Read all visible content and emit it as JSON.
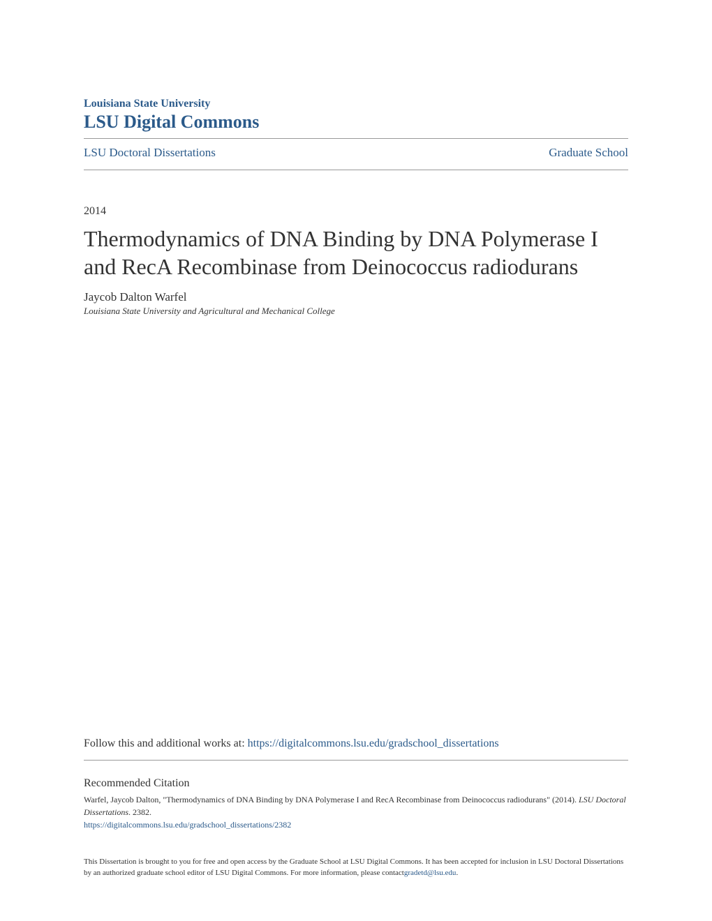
{
  "colors": {
    "link": "#2b5a8a",
    "text": "#333333",
    "border": "#999999",
    "background": "#ffffff"
  },
  "typography": {
    "font_family": "Georgia, Times New Roman, serif",
    "title_size": 32,
    "body_size": 16,
    "small_size": 12,
    "footer_size": 11
  },
  "header": {
    "institution_small": "Louisiana State University",
    "institution_large": "LSU Digital Commons"
  },
  "nav": {
    "left": "LSU Doctoral Dissertations",
    "right": "Graduate School"
  },
  "metadata": {
    "year": "2014",
    "title": "Thermodynamics of DNA Binding by DNA Polymerase I and RecA Recombinase from Deinococcus radiodurans",
    "author": "Jaycob Dalton Warfel",
    "affiliation": "Louisiana State University and Agricultural and Mechanical College"
  },
  "follow": {
    "text": "Follow this and additional works at: ",
    "link": "https://digitalcommons.lsu.edu/gradschool_dissertations"
  },
  "citation": {
    "heading": "Recommended Citation",
    "body_part1": "Warfel, Jaycob Dalton, \"Thermodynamics of DNA Binding by DNA Polymerase I and RecA Recombinase from Deinococcus radiodurans\" (2014). ",
    "body_italic": "LSU Doctoral Dissertations",
    "body_part2": ". 2382.",
    "link": "https://digitalcommons.lsu.edu/gradschool_dissertations/2382"
  },
  "footer": {
    "text": "This Dissertation is brought to you for free and open access by the Graduate School at LSU Digital Commons. It has been accepted for inclusion in LSU Doctoral Dissertations by an authorized graduate school editor of LSU Digital Commons. For more information, please contact",
    "email": "gradetd@lsu.edu",
    "period": "."
  }
}
